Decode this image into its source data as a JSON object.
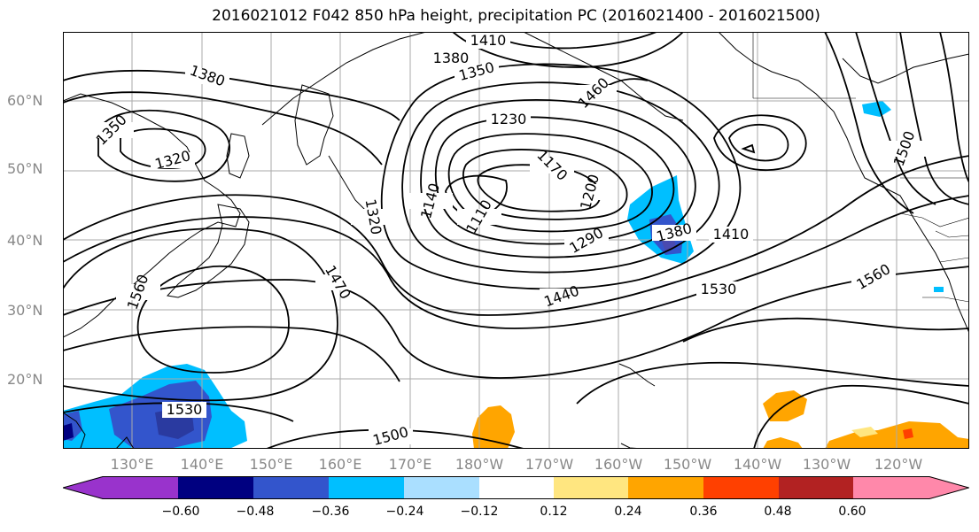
{
  "title": "2016021012 F042 850 hPa height, precipitation PC (2016021400 - 2016021500)",
  "lat_labels": [
    "60°N",
    "50°N",
    "40°N",
    "30°N",
    "20°N"
  ],
  "lon_labels": [
    "130°E",
    "140°E",
    "150°E",
    "160°E",
    "170°E",
    "180°W",
    "170°W",
    "160°W",
    "150°W",
    "140°W",
    "130°W",
    "120°W"
  ],
  "colorbar": {
    "colors": [
      "#9933cc",
      "#000080",
      "#3355cc",
      "#00bfff",
      "#aadfff",
      "#ffffff",
      "#ffe680",
      "#ffa500",
      "#ff4000",
      "#b22222",
      "#ff88aa"
    ],
    "ticks": [
      "−0.60",
      "−0.48",
      "−0.36",
      "−0.24",
      "−0.12",
      "0.12",
      "0.24",
      "0.36",
      "0.48",
      "0.60"
    ]
  },
  "contour_labels": [
    "1410",
    "1380",
    "1350",
    "1460",
    "1380",
    "1350",
    "1320",
    "1230",
    "1170",
    "1200",
    "1140",
    "1110",
    "1320",
    "1470",
    "1290",
    "1380",
    "1410",
    "1440",
    "1530",
    "1500",
    "1560",
    "1530",
    "1500",
    "1560"
  ],
  "colors": {
    "land_line": "#000000",
    "grid": "#aaaaaa",
    "contour": "#000000",
    "axis_text": "#888888"
  }
}
